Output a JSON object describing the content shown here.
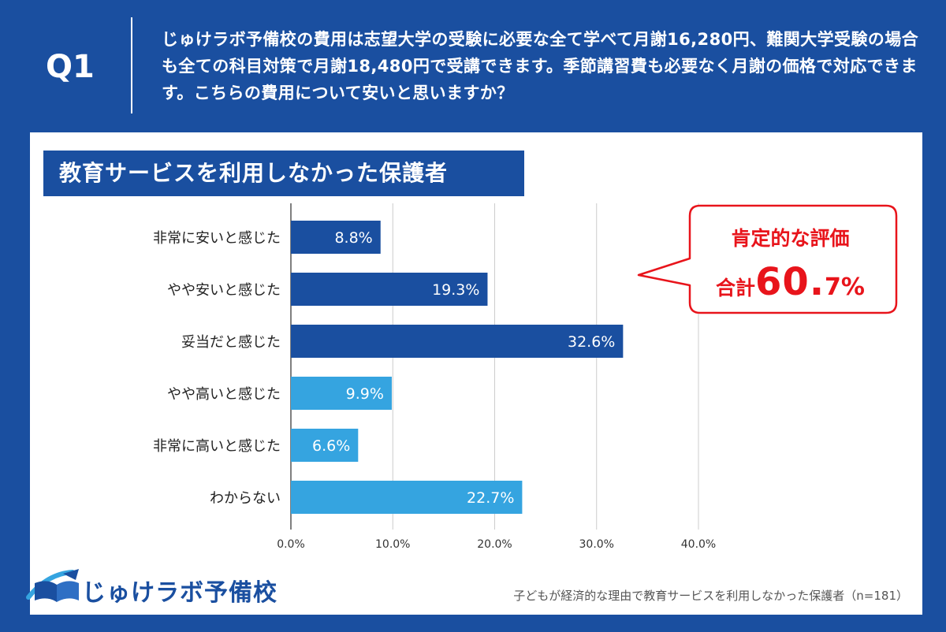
{
  "header": {
    "q_label": "Q1",
    "question": "じゅけラボ予備校の費用は志望大学の受験に必要な全て学べて月謝16,280円、難関大学受験の場合も全ての科目対策で月謝18,480円で受講できます。季節講習費も必要なく月謝の価格で対応できます。こちらの費用について安いと思いますか？"
  },
  "section_title": "教育サービスを利用しなかった保護者",
  "chart_data": {
    "type": "bar",
    "orientation": "horizontal",
    "categories": [
      "非常に安いと感じた",
      "やや安いと感じた",
      "妥当だと感じた",
      "やや高いと感じた",
      "非常に高いと感じた",
      "わからない"
    ],
    "values": [
      8.8,
      19.3,
      32.6,
      9.9,
      6.6,
      22.7
    ],
    "value_labels": [
      "8.8%",
      "19.3%",
      "32.6%",
      "9.9%",
      "6.6%",
      "22.7%"
    ],
    "bar_colors": [
      "#1a4fa0",
      "#1a4fa0",
      "#1a4fa0",
      "#35a4e0",
      "#35a4e0",
      "#35a4e0"
    ],
    "xlim": [
      0,
      40
    ],
    "x_ticks": [
      "0.0%",
      "10.0%",
      "20.0%",
      "30.0%",
      "40.0%"
    ],
    "grid": true
  },
  "callout": {
    "line1": "肯定的な評価",
    "prefix": "合計",
    "big": "60.",
    "small": "7%",
    "color": "#e8141b"
  },
  "logo": {
    "text": "じゅけラボ予備校"
  },
  "footnote": "子どもが経済的な理由で教育サービスを利用しなかった保護者（n=181）"
}
